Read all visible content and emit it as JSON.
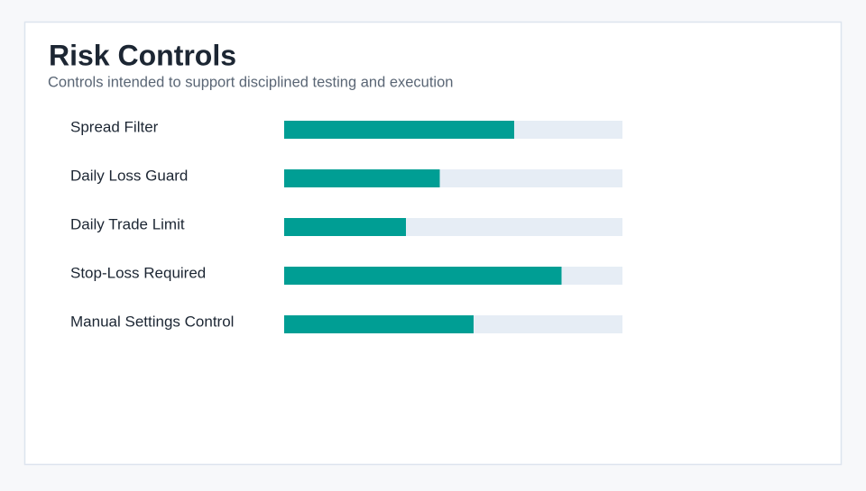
{
  "chart_data": {
    "type": "bar",
    "orientation": "horizontal",
    "title": "Risk Controls",
    "subtitle": "Controls intended to support disciplined testing and execution",
    "categories": [
      "Spread Filter",
      "Daily Loss Guard",
      "Daily Trade Limit",
      "Stop-Loss Required",
      "Manual Settings Control"
    ],
    "values": [
      68,
      46,
      36,
      82,
      56
    ],
    "xlim": [
      0,
      100
    ],
    "color": "#009e94",
    "track_color": "#e6edf5"
  }
}
